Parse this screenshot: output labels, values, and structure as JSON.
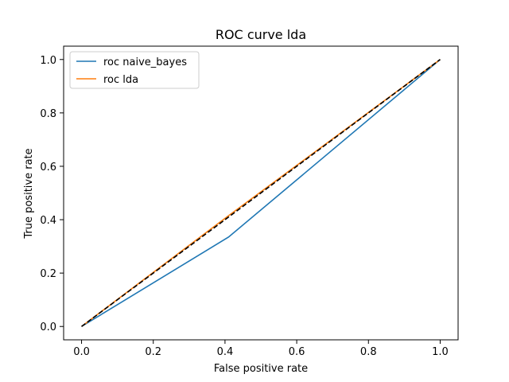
{
  "chart_data": {
    "type": "line",
    "title": "ROC curve lda",
    "xlabel": "False positive rate",
    "ylabel": "True positive rate",
    "xlim": [
      -0.05,
      1.05
    ],
    "ylim": [
      -0.05,
      1.05
    ],
    "xticks": [
      0.0,
      0.2,
      0.4,
      0.6,
      0.8,
      1.0
    ],
    "yticks": [
      0.0,
      0.2,
      0.4,
      0.6,
      0.8,
      1.0
    ],
    "xtick_labels": [
      "0.0",
      "0.2",
      "0.4",
      "0.6",
      "0.8",
      "1.0"
    ],
    "ytick_labels": [
      "0.0",
      "0.2",
      "0.4",
      "0.6",
      "0.8",
      "1.0"
    ],
    "grid": false,
    "legend_position": "top-left",
    "reference_line": {
      "x": [
        0,
        1
      ],
      "y": [
        0,
        1
      ],
      "color": "#000000",
      "style": "dashed"
    },
    "series": [
      {
        "name": "roc naive_bayes",
        "color": "#1f77b4",
        "x": [
          0.0,
          0.41,
          1.0
        ],
        "y": [
          0.0,
          0.335,
          1.0
        ]
      },
      {
        "name": "roc lda",
        "color": "#ff7f0e",
        "x": [
          0.0,
          0.41,
          1.0
        ],
        "y": [
          0.0,
          0.415,
          1.0
        ]
      }
    ]
  }
}
